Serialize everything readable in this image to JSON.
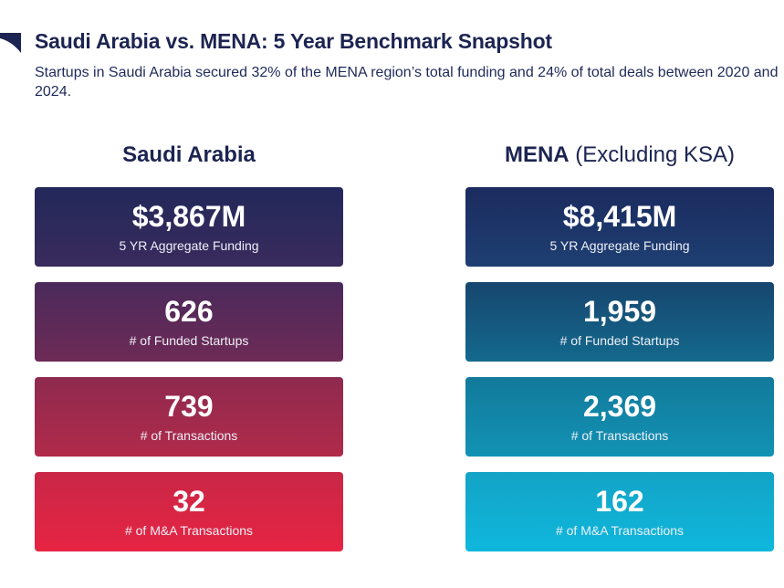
{
  "header": {
    "title": "Saudi Arabia vs. MENA: 5 Year Benchmark Snapshot",
    "subtitle": "Startups in Saudi Arabia secured 32% of the MENA region’s total funding and 24% of total deals between 2020 and 2024."
  },
  "columns": {
    "left": {
      "heading": "Saudi Arabia",
      "cards": [
        {
          "value": "$3,867M",
          "label": "5 YR Aggregate Funding"
        },
        {
          "value": "626",
          "label": "# of Funded Startups"
        },
        {
          "value": "739",
          "label": "# of Transactions"
        },
        {
          "value": "32",
          "label": "# of M&A Transactions"
        }
      ]
    },
    "right": {
      "heading_bold": "MENA",
      "heading_light": " (Excluding KSA)",
      "cards": [
        {
          "value": "$8,415M",
          "label": "5 YR Aggregate Funding"
        },
        {
          "value": "1,959",
          "label": "# of Funded Startups"
        },
        {
          "value": "2,369",
          "label": "# of Transactions"
        },
        {
          "value": "162",
          "label": "# of M&A Transactions"
        }
      ]
    }
  },
  "colors": {
    "title": "#1c2451",
    "ksa_gradient": [
      "#22285a",
      "#3a2b5d",
      "#4a2a5b",
      "#6e2a56",
      "#8e2a4f",
      "#b12a4a",
      "#c92747",
      "#e62442"
    ],
    "mena_gradient": [
      "#1b2b5f",
      "#1e3f72",
      "#17466f",
      "#14698d",
      "#127a9b",
      "#1292b4",
      "#13a3c6",
      "#0fb7dc"
    ]
  }
}
